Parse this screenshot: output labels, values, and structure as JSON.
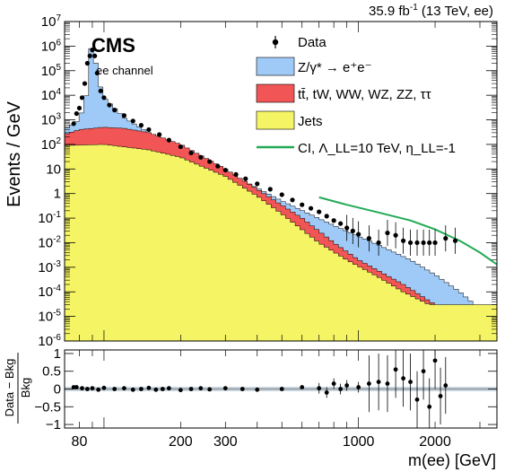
{
  "chart_data": {
    "type": "histogram",
    "lumi": {
      "pre": "35.9 fb",
      "sup": "-1",
      "post": " (13 TeV, ee)"
    },
    "experiment": "CMS",
    "channel": "ee channel",
    "ylabel": "Events / GeV",
    "xlabel": "m(ee) [GeV]",
    "ratio_ylabel_num": "Data − Bkg",
    "ratio_ylabel_den": "Bkg",
    "xscale": "log",
    "xlim": [
      70,
      3500
    ],
    "yscale": "log",
    "ylim": [
      1e-06,
      10000000.0
    ],
    "ratio_ylim": [
      -1.1,
      1.1
    ],
    "x_ticks": [
      80,
      200,
      300,
      1000,
      2000
    ],
    "x_tick_labels": [
      "80",
      "200",
      "300",
      "1000",
      "2000"
    ],
    "y_tick_labels": [
      "10^-6",
      "10^-5",
      "10^-4",
      "10^-3",
      "10^-2",
      "10^-1",
      "1",
      "10",
      "10^2",
      "10^3",
      "10^4",
      "10^5",
      "10^6",
      "10^7"
    ],
    "ratio_tick_labels": [
      "1",
      "0.5",
      "0",
      "−0.5",
      "−1"
    ],
    "ratio_ticks": [
      1,
      0.5,
      0,
      -0.5,
      -1
    ],
    "legend_position": "top-right",
    "legend": [
      {
        "label": "Data",
        "kind": "marker",
        "color": "#000000"
      },
      {
        "label": "Z/γ* → e⁺e⁻",
        "kind": "fill",
        "color": "#9fcaf7"
      },
      {
        "label": "tt̄, tW, WW, WZ, ZZ, ττ",
        "kind": "fill",
        "color": "#f25555"
      },
      {
        "label": "Jets",
        "kind": "fill",
        "color": "#f4f464"
      },
      {
        "label": "CI, Λ_LL=10 TeV, η_LL=-1",
        "kind": "line",
        "color": "#22aa55"
      }
    ],
    "stack_total_points": [
      [
        70,
        400
      ],
      [
        80,
        1000
      ],
      [
        85,
        8000
      ],
      [
        88,
        600000
      ],
      [
        91,
        1500000
      ],
      [
        94,
        60000
      ],
      [
        100,
        8000
      ],
      [
        120,
        1200
      ],
      [
        150,
        300
      ],
      [
        200,
        60
      ],
      [
        300,
        8
      ],
      [
        500,
        0.5
      ],
      [
        800,
        0.05
      ],
      [
        1200,
        0.008
      ],
      [
        1600,
        0.002
      ],
      [
        2000,
        0.0005
      ],
      [
        2500,
        0.0001
      ],
      [
        3000,
        2e-05
      ],
      [
        3500,
        3e-06
      ]
    ],
    "ttbar_top_points": [
      [
        70,
        250
      ],
      [
        80,
        400
      ],
      [
        100,
        500
      ],
      [
        120,
        450
      ],
      [
        150,
        300
      ],
      [
        200,
        100
      ],
      [
        300,
        10
      ],
      [
        400,
        1.5
      ],
      [
        600,
        0.1
      ],
      [
        800,
        0.01
      ],
      [
        1000,
        0.002
      ],
      [
        1500,
        0.0002
      ],
      [
        2000,
        3e-05
      ],
      [
        2500,
        5e-06
      ]
    ],
    "jets_top_points": [
      [
        70,
        90
      ],
      [
        100,
        100
      ],
      [
        150,
        60
      ],
      [
        200,
        30
      ],
      [
        300,
        5
      ],
      [
        400,
        0.8
      ],
      [
        500,
        0.15
      ],
      [
        700,
        0.01
      ],
      [
        900,
        0.002
      ],
      [
        1200,
        0.0004
      ],
      [
        1500,
        0.0001
      ],
      [
        1900,
        3e-05
      ]
    ],
    "ci_line_points": [
      [
        700,
        0.7
      ],
      [
        900,
        0.35
      ],
      [
        1200,
        0.17
      ],
      [
        1600,
        0.08
      ],
      [
        2000,
        0.035
      ],
      [
        2500,
        0.012
      ],
      [
        3000,
        0.004
      ],
      [
        3500,
        0.0013
      ]
    ],
    "ci_line_color": "#22aa55",
    "data_points": [
      [
        76,
        700
      ],
      [
        78,
        1800
      ],
      [
        80,
        3000
      ],
      [
        82,
        8000
      ],
      [
        84,
        30000
      ],
      [
        86,
        200000
      ],
      [
        88,
        400000
      ],
      [
        90,
        700000
      ],
      [
        92,
        400000
      ],
      [
        94,
        80000
      ],
      [
        97,
        15000
      ],
      [
        100,
        8000
      ],
      [
        105,
        4000
      ],
      [
        110,
        2500
      ],
      [
        120,
        1500
      ],
      [
        130,
        900
      ],
      [
        140,
        600
      ],
      [
        150,
        400
      ],
      [
        165,
        250
      ],
      [
        180,
        150
      ],
      [
        200,
        80
      ],
      [
        220,
        45
      ],
      [
        240,
        30
      ],
      [
        260,
        20
      ],
      [
        280,
        13
      ],
      [
        300,
        9
      ],
      [
        330,
        6
      ],
      [
        360,
        4
      ],
      [
        400,
        2.5
      ],
      [
        450,
        1.5
      ],
      [
        500,
        0.9
      ],
      [
        550,
        0.55
      ],
      [
        600,
        0.35
      ],
      [
        650,
        0.25
      ],
      [
        700,
        0.18
      ],
      [
        750,
        0.12
      ],
      [
        800,
        0.08
      ],
      [
        850,
        0.06
      ],
      [
        900,
        0.04
      ],
      [
        950,
        0.03
      ],
      [
        1000,
        0.022
      ],
      [
        1100,
        0.015
      ],
      [
        1200,
        0.01
      ],
      [
        1300,
        0.025
      ],
      [
        1400,
        0.02
      ],
      [
        1500,
        0.012
      ],
      [
        1600,
        0.01
      ],
      [
        1700,
        0.01
      ],
      [
        1800,
        0.01
      ],
      [
        1900,
        0.01
      ],
      [
        2000,
        0.01
      ],
      [
        2200,
        0.015
      ],
      [
        2400,
        0.012
      ]
    ],
    "ratio_points": [
      [
        76,
        0.05
      ],
      [
        78,
        0.05
      ],
      [
        82,
        0.02
      ],
      [
        86,
        0.0
      ],
      [
        90,
        0.02
      ],
      [
        95,
        -0.02
      ],
      [
        100,
        0.03
      ],
      [
        110,
        0.0
      ],
      [
        120,
        0.02
      ],
      [
        130,
        -0.02
      ],
      [
        140,
        0.0
      ],
      [
        150,
        0.03
      ],
      [
        160,
        -0.02
      ],
      [
        170,
        0.0
      ],
      [
        180,
        0.02
      ],
      [
        200,
        -0.03
      ],
      [
        220,
        0.0
      ],
      [
        240,
        0.02
      ],
      [
        260,
        -0.01
      ],
      [
        300,
        0.02
      ],
      [
        350,
        0.0
      ],
      [
        400,
        -0.02
      ],
      [
        500,
        0.0
      ],
      [
        600,
        0.05
      ],
      [
        700,
        0.02
      ],
      [
        750,
        -0.1
      ],
      [
        800,
        0.15
      ],
      [
        850,
        0.0
      ],
      [
        900,
        0.1
      ],
      [
        1000,
        0.05
      ],
      [
        1100,
        0.15
      ],
      [
        1200,
        0.2
      ],
      [
        1300,
        0.15
      ],
      [
        1400,
        0.55
      ],
      [
        1500,
        0.3
      ],
      [
        1600,
        0.2
      ],
      [
        1700,
        -0.3
      ],
      [
        1800,
        0.5
      ],
      [
        1900,
        -0.5
      ],
      [
        2000,
        0.8
      ],
      [
        2100,
        -0.2
      ],
      [
        2200,
        0.1
      ]
    ]
  }
}
